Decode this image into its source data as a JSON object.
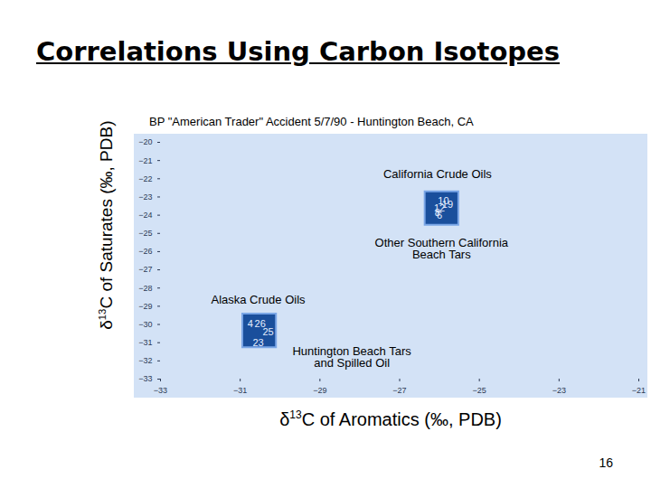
{
  "chart_data": {
    "type": "scatter",
    "title": "Correlations Using Carbon Isotopes",
    "subtitle": "BP \"American Trader\" Accident 5/7/90 - Huntington Beach, CA",
    "xlabel": "δ13C of Aromatics (‰, PDB)",
    "ylabel": "δ13C of Saturates (‰, PDB)",
    "page_number": "16",
    "xlim": [
      -33,
      -21
    ],
    "xticks": [
      -33,
      -31,
      -29,
      -27,
      -25,
      -23,
      -21
    ],
    "ylim": [
      -33,
      -20
    ],
    "yticks": [
      -33,
      -32,
      -31,
      -30,
      -29,
      -28,
      -27,
      -26,
      -25,
      -24,
      -23,
      -22,
      -21,
      -20
    ],
    "grid": false,
    "color": "#1a4f9c",
    "groups": [
      {
        "points": [
          {
            "x": -25.9,
            "y": -23.2,
            "label": "10"
          },
          {
            "x": -25.8,
            "y": -23.4,
            "label": "19"
          },
          {
            "x": -26.0,
            "y": -23.6,
            "label": "12"
          },
          {
            "x": -26.05,
            "y": -23.85,
            "label": "8"
          },
          {
            "x": -26.0,
            "y": -24.0,
            "label": "6"
          }
        ]
      },
      {
        "points": [
          {
            "x": -30.75,
            "y": -29.95,
            "label": "4"
          },
          {
            "x": -30.5,
            "y": -29.95,
            "label": "26"
          },
          {
            "x": -30.3,
            "y": -30.4,
            "label": "25"
          },
          {
            "x": -30.55,
            "y": -31.0,
            "label": "23"
          }
        ]
      }
    ],
    "annotations": [
      {
        "text": "California Crude Oils",
        "x": -26.05,
        "y": -21.75
      },
      {
        "text": "Other Southern California\nBeach Tars",
        "x": -25.95,
        "y": -25.85
      },
      {
        "text": "Alaska Crude Oils",
        "x": -30.55,
        "y": -28.65
      },
      {
        "text": "Huntington Beach Tars\nand Spilled Oil",
        "x": -28.2,
        "y": -31.8
      }
    ]
  }
}
